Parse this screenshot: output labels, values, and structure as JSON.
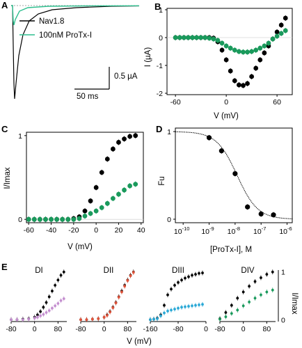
{
  "panels": {
    "A": "A",
    "B": "B",
    "C": "C",
    "D": "D",
    "E": "E"
  },
  "colors": {
    "control": "#000000",
    "protx": "#1a9a5c",
    "protx_trace": "#2fbf8f",
    "diii": "#29a8d6",
    "di": "#c48fcf",
    "dii": "#e0533a",
    "grid": "#d8d8d8"
  },
  "chart_data": [
    {
      "panel": "A",
      "type": "line",
      "legend": [
        "Nav1.8",
        "100nM ProTx-I"
      ],
      "scalebar_y": "0.5 µA",
      "scalebar_x": "50 ms"
    },
    {
      "panel": "B",
      "type": "scatter",
      "xlabel": "V (mV)",
      "ylabel": "I (µA)",
      "xlim": [
        -60,
        75
      ],
      "ylim": [
        -2,
        1
      ],
      "xticks": [
        "-60",
        "0",
        "60"
      ],
      "yticks": [
        "1",
        "0",
        "-1",
        "-2"
      ],
      "x": [
        -60,
        -55,
        -50,
        -45,
        -40,
        -35,
        -30,
        -25,
        -20,
        -15,
        -10,
        -5,
        0,
        5,
        10,
        15,
        20,
        25,
        30,
        35,
        40,
        45,
        50,
        55,
        60,
        65,
        70
      ],
      "series": [
        {
          "values": [
            0,
            0,
            0,
            0,
            0,
            0,
            0,
            0,
            0,
            -0.02,
            -0.15,
            -0.45,
            -0.8,
            -1.2,
            -1.55,
            -1.7,
            -1.72,
            -1.65,
            -1.4,
            -1.1,
            -0.8,
            -0.55,
            -0.3,
            -0.05,
            0.2,
            0.45,
            0.7
          ]
        },
        {
          "values": [
            0,
            0,
            0,
            0,
            0,
            0,
            0,
            0,
            -0.02,
            -0.05,
            -0.1,
            -0.2,
            -0.3,
            -0.38,
            -0.45,
            -0.5,
            -0.52,
            -0.52,
            -0.5,
            -0.45,
            -0.38,
            -0.3,
            -0.2,
            -0.05,
            0.05,
            0.15,
            0.25
          ]
        }
      ]
    },
    {
      "panel": "C",
      "type": "scatter",
      "xlabel": "V (mV)",
      "ylabel": "I/Imax",
      "xlim": [
        -60,
        40
      ],
      "ylim": [
        0,
        1
      ],
      "xticks": [
        "-60",
        "-40",
        "-20",
        "0",
        "20",
        "40"
      ],
      "yticks": [
        "1",
        "0"
      ],
      "x": [
        -60,
        -55,
        -50,
        -45,
        -40,
        -35,
        -30,
        -25,
        -20,
        -15,
        -10,
        -5,
        0,
        5,
        10,
        15,
        20,
        25,
        30,
        35
      ],
      "series": [
        {
          "values": [
            0,
            0,
            0,
            0,
            0,
            0,
            0,
            0,
            0.01,
            0.03,
            0.1,
            0.22,
            0.38,
            0.56,
            0.72,
            0.84,
            0.92,
            0.96,
            0.99,
            1.0
          ]
        },
        {
          "values": [
            0,
            0,
            0,
            0,
            0,
            0,
            0,
            0,
            0,
            0.01,
            0.04,
            0.07,
            0.1,
            0.14,
            0.19,
            0.25,
            0.3,
            0.35,
            0.4,
            0.42
          ]
        }
      ]
    },
    {
      "panel": "D",
      "type": "scatter",
      "xlabel": "[ProTx-I], M",
      "ylabel": "Fu",
      "xscale": "log",
      "xlim": [
        1e-10,
        1e-06
      ],
      "ylim": [
        0,
        1
      ],
      "xticks": [
        "10^-10",
        "10^-9",
        "10^-8",
        "10^-7",
        "10^-6"
      ],
      "yticks": [
        "1",
        "0"
      ],
      "x": [
        1e-09,
        3e-09,
        1e-08,
        3e-08,
        1e-07,
        3e-07
      ],
      "series": [
        {
          "values": [
            0.93,
            0.78,
            0.52,
            0.14,
            0.06,
            0.05
          ]
        }
      ]
    },
    {
      "panel": "E",
      "type": "scatter",
      "xlabel": "V (mV)",
      "ylabel": "I/Imax",
      "ylim": [
        0,
        1
      ],
      "yticks": [
        "1",
        "0"
      ],
      "subpanels": [
        {
          "title": "DI",
          "xlim": [
            -80,
            110
          ],
          "xticks": [
            "-80",
            "0",
            "80"
          ],
          "x": [
            -80,
            -60,
            -40,
            -20,
            0,
            10,
            20,
            30,
            40,
            50,
            60,
            70,
            80,
            90,
            100
          ],
          "series": [
            {
              "values": [
                0,
                0,
                0.01,
                0.02,
                0.05,
                0.1,
                0.17,
                0.26,
                0.36,
                0.48,
                0.6,
                0.72,
                0.83,
                0.93,
                1.0
              ]
            },
            {
              "values": [
                0,
                0,
                0,
                0.01,
                0.03,
                0.05,
                0.08,
                0.11,
                0.15,
                0.19,
                0.24,
                0.29,
                0.34,
                0.4,
                0.44
              ]
            }
          ]
        },
        {
          "title": "DII",
          "xlim": [
            -80,
            110
          ],
          "xticks": [
            "-80",
            "0",
            "80"
          ],
          "x": [
            -80,
            -60,
            -40,
            -20,
            0,
            10,
            20,
            30,
            40,
            50,
            60,
            70,
            80,
            90,
            100
          ],
          "series": [
            {
              "values": [
                0,
                0,
                0.01,
                0.02,
                0.05,
                0.1,
                0.17,
                0.26,
                0.36,
                0.48,
                0.6,
                0.72,
                0.83,
                0.93,
                1.0
              ]
            },
            {
              "values": [
                0,
                0,
                0.01,
                0.02,
                0.05,
                0.09,
                0.16,
                0.25,
                0.35,
                0.47,
                0.58,
                0.7,
                0.82,
                0.92,
                0.99
              ]
            }
          ]
        },
        {
          "title": "DIII",
          "xlim": [
            -160,
            0
          ],
          "xticks": [
            "-160",
            "-80",
            "0"
          ],
          "x": [
            -160,
            -150,
            -140,
            -130,
            -120,
            -110,
            -100,
            -90,
            -80,
            -70,
            -60,
            -50,
            -40,
            -30,
            -20,
            -10
          ],
          "series": [
            {
              "values": [
                0,
                0.01,
                0.03,
                0.1,
                0.3,
                0.52,
                0.64,
                0.72,
                0.78,
                0.83,
                0.87,
                0.9,
                0.93,
                0.95,
                0.97,
                0.98
              ]
            },
            {
              "values": [
                0,
                0.01,
                0.02,
                0.08,
                0.14,
                0.18,
                0.2,
                0.22,
                0.24,
                0.26,
                0.27,
                0.28,
                0.29,
                0.3,
                0.31,
                0.32
              ]
            }
          ]
        },
        {
          "title": "DIV",
          "xlim": [
            -80,
            110
          ],
          "xticks": [
            "-80",
            "0",
            "80"
          ],
          "x": [
            -80,
            -60,
            -40,
            -20,
            0,
            20,
            40,
            60,
            80,
            100
          ],
          "series": [
            {
              "values": [
                0.02,
                0.15,
                0.3,
                0.45,
                0.58,
                0.7,
                0.8,
                0.88,
                0.95,
                1.0
              ]
            },
            {
              "values": [
                0.01,
                0.06,
                0.13,
                0.2,
                0.29,
                0.37,
                0.45,
                0.52,
                0.58,
                0.62
              ]
            }
          ]
        }
      ]
    }
  ]
}
